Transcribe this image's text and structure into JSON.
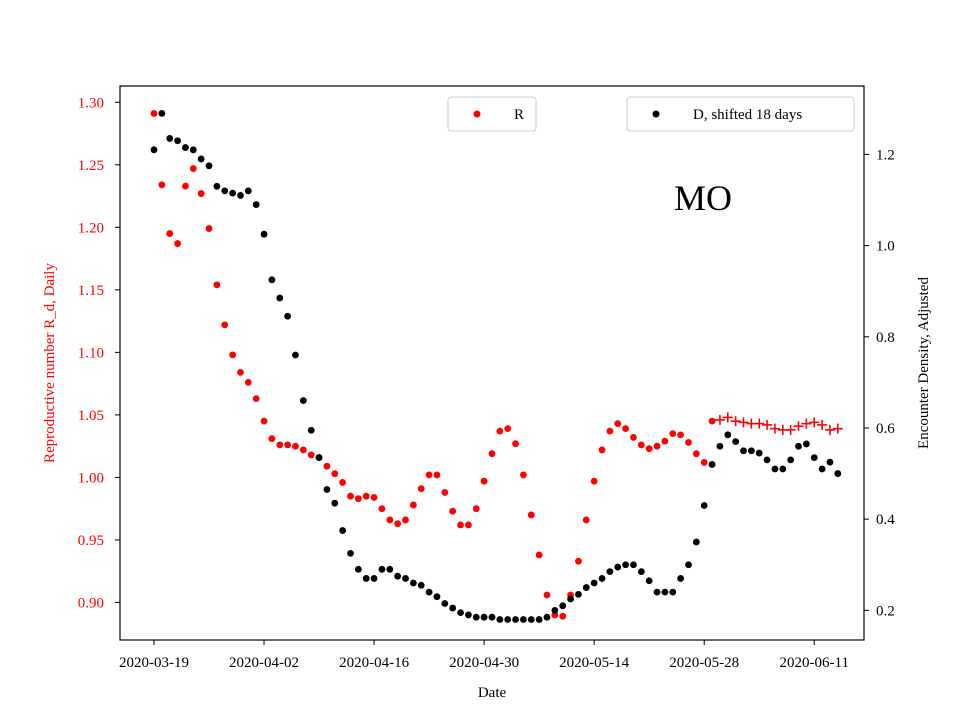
{
  "chart_data": {
    "type": "scatter",
    "title": "",
    "annotation": "MO",
    "xlabel": "Date",
    "ylabel_left": "Reproductive number R_d, Daily",
    "ylabel_right": "Encounter Density, Adjusted",
    "x_start": "2020-03-19",
    "x_ticks": [
      "2020-03-19",
      "2020-04-02",
      "2020-04-16",
      "2020-04-30",
      "2020-05-14",
      "2020-05-28",
      "2020-06-11"
    ],
    "y_left_ticks": [
      "0.90",
      "0.95",
      "1.00",
      "1.05",
      "1.10",
      "1.15",
      "1.20",
      "1.25",
      "1.30"
    ],
    "y_right_ticks": [
      "0.2",
      "0.4",
      "0.6",
      "0.8",
      "1.0",
      "1.2"
    ],
    "ylim_left": [
      0.87,
      1.313
    ],
    "ylim_right": [
      0.135,
      1.35
    ],
    "legend_left": {
      "label": "R",
      "placement": "upper-center"
    },
    "legend_right": {
      "label": "D, shifted 18 days",
      "placement": "upper-right"
    },
    "colors": {
      "R": "#ff0000",
      "D": "#000000",
      "left_axis": "#ff0000",
      "right_axis": "#000000"
    },
    "series": [
      {
        "name": "R",
        "axis": "left",
        "marker": "dot",
        "x": [
          "2020-03-19",
          "2020-03-20",
          "2020-03-21",
          "2020-03-22",
          "2020-03-23",
          "2020-03-24",
          "2020-03-25",
          "2020-03-26",
          "2020-03-27",
          "2020-03-28",
          "2020-03-29",
          "2020-03-30",
          "2020-03-31",
          "2020-04-01",
          "2020-04-02",
          "2020-04-03",
          "2020-04-04",
          "2020-04-05",
          "2020-04-06",
          "2020-04-07",
          "2020-04-08",
          "2020-04-09",
          "2020-04-10",
          "2020-04-11",
          "2020-04-12",
          "2020-04-13",
          "2020-04-14",
          "2020-04-15",
          "2020-04-16",
          "2020-04-17",
          "2020-04-18",
          "2020-04-19",
          "2020-04-20",
          "2020-04-21",
          "2020-04-22",
          "2020-04-23",
          "2020-04-24",
          "2020-04-25",
          "2020-04-26",
          "2020-04-27",
          "2020-04-28",
          "2020-04-29",
          "2020-04-30",
          "2020-05-01",
          "2020-05-02",
          "2020-05-03",
          "2020-05-04",
          "2020-05-05",
          "2020-05-06",
          "2020-05-07",
          "2020-05-08",
          "2020-05-09",
          "2020-05-10",
          "2020-05-11",
          "2020-05-12",
          "2020-05-13",
          "2020-05-14",
          "2020-05-15",
          "2020-05-16",
          "2020-05-17",
          "2020-05-18",
          "2020-05-19",
          "2020-05-20",
          "2020-05-21",
          "2020-05-22",
          "2020-05-23",
          "2020-05-24",
          "2020-05-25",
          "2020-05-26",
          "2020-05-27",
          "2020-05-28",
          "2020-05-29"
        ],
        "values": [
          1.291,
          1.234,
          1.195,
          1.187,
          1.233,
          1.247,
          1.227,
          1.199,
          1.154,
          1.122,
          1.098,
          1.084,
          1.076,
          1.063,
          1.045,
          1.031,
          1.026,
          1.026,
          1.025,
          1.022,
          1.018,
          1.016,
          1.009,
          1.003,
          0.996,
          0.985,
          0.983,
          0.985,
          0.984,
          0.975,
          0.966,
          0.963,
          0.966,
          0.978,
          0.991,
          1.002,
          1.002,
          0.988,
          0.973,
          0.962,
          0.962,
          0.975,
          0.997,
          1.019,
          1.037,
          1.039,
          1.027,
          1.002,
          0.97,
          0.938,
          0.906,
          0.89,
          0.889,
          0.906,
          0.933,
          0.966,
          0.997,
          1.022,
          1.037,
          1.043,
          1.039,
          1.032,
          1.026,
          1.023,
          1.025,
          1.029,
          1.035,
          1.034,
          1.028,
          1.019,
          1.012,
          1.045
        ]
      },
      {
        "name": "R",
        "axis": "left",
        "marker": "plus",
        "x": [
          "2020-05-30",
          "2020-05-31",
          "2020-06-01",
          "2020-06-02",
          "2020-06-03",
          "2020-06-04",
          "2020-06-05",
          "2020-06-06",
          "2020-06-07",
          "2020-06-08",
          "2020-06-09",
          "2020-06-10",
          "2020-06-11",
          "2020-06-12",
          "2020-06-13",
          "2020-06-14"
        ],
        "values": [
          1.046,
          1.048,
          1.045,
          1.044,
          1.043,
          1.043,
          1.042,
          1.039,
          1.038,
          1.038,
          1.041,
          1.043,
          1.044,
          1.042,
          1.038,
          1.039
        ]
      },
      {
        "name": "D, shifted 18 days",
        "axis": "right",
        "marker": "dot",
        "x": [
          "2020-03-19",
          "2020-03-20",
          "2020-03-21",
          "2020-03-22",
          "2020-03-23",
          "2020-03-24",
          "2020-03-25",
          "2020-03-26",
          "2020-03-27",
          "2020-03-28",
          "2020-03-29",
          "2020-03-30",
          "2020-03-31",
          "2020-04-01",
          "2020-04-02",
          "2020-04-03",
          "2020-04-04",
          "2020-04-05",
          "2020-04-06",
          "2020-04-07",
          "2020-04-08",
          "2020-04-09",
          "2020-04-10",
          "2020-04-11",
          "2020-04-12",
          "2020-04-13",
          "2020-04-14",
          "2020-04-15",
          "2020-04-16",
          "2020-04-17",
          "2020-04-18",
          "2020-04-19",
          "2020-04-20",
          "2020-04-21",
          "2020-04-22",
          "2020-04-23",
          "2020-04-24",
          "2020-04-25",
          "2020-04-26",
          "2020-04-27",
          "2020-04-28",
          "2020-04-29",
          "2020-04-30",
          "2020-05-01",
          "2020-05-02",
          "2020-05-03",
          "2020-05-04",
          "2020-05-05",
          "2020-05-06",
          "2020-05-07",
          "2020-05-08",
          "2020-05-09",
          "2020-05-10",
          "2020-05-11",
          "2020-05-12",
          "2020-05-13",
          "2020-05-14",
          "2020-05-15",
          "2020-05-16",
          "2020-05-17",
          "2020-05-18",
          "2020-05-19",
          "2020-05-20",
          "2020-05-21",
          "2020-05-22",
          "2020-05-23",
          "2020-05-24",
          "2020-05-25",
          "2020-05-26",
          "2020-05-27",
          "2020-05-28",
          "2020-05-29",
          "2020-05-30",
          "2020-05-31",
          "2020-06-01",
          "2020-06-02",
          "2020-06-03",
          "2020-06-04",
          "2020-06-05",
          "2020-06-06",
          "2020-06-07",
          "2020-06-08",
          "2020-06-09",
          "2020-06-10",
          "2020-06-11",
          "2020-06-12",
          "2020-06-13",
          "2020-06-14"
        ],
        "values": [
          1.21,
          1.29,
          1.235,
          1.23,
          1.215,
          1.21,
          1.19,
          1.175,
          1.13,
          1.12,
          1.115,
          1.11,
          1.12,
          1.09,
          1.025,
          0.925,
          0.885,
          0.845,
          0.76,
          0.66,
          0.595,
          0.535,
          0.465,
          0.435,
          0.375,
          0.325,
          0.29,
          0.27,
          0.27,
          0.29,
          0.29,
          0.275,
          0.27,
          0.26,
          0.255,
          0.24,
          0.23,
          0.215,
          0.205,
          0.195,
          0.19,
          0.185,
          0.185,
          0.185,
          0.18,
          0.18,
          0.18,
          0.18,
          0.18,
          0.18,
          0.185,
          0.2,
          0.21,
          0.225,
          0.235,
          0.25,
          0.26,
          0.27,
          0.285,
          0.295,
          0.3,
          0.3,
          0.285,
          0.265,
          0.24,
          0.24,
          0.24,
          0.27,
          0.3,
          0.35,
          0.43,
          0.52,
          0.56,
          0.585,
          0.57,
          0.55,
          0.55,
          0.545,
          0.53,
          0.51,
          0.51,
          0.53,
          0.56,
          0.565,
          0.535,
          0.51,
          0.525,
          0.5
        ]
      }
    ]
  }
}
